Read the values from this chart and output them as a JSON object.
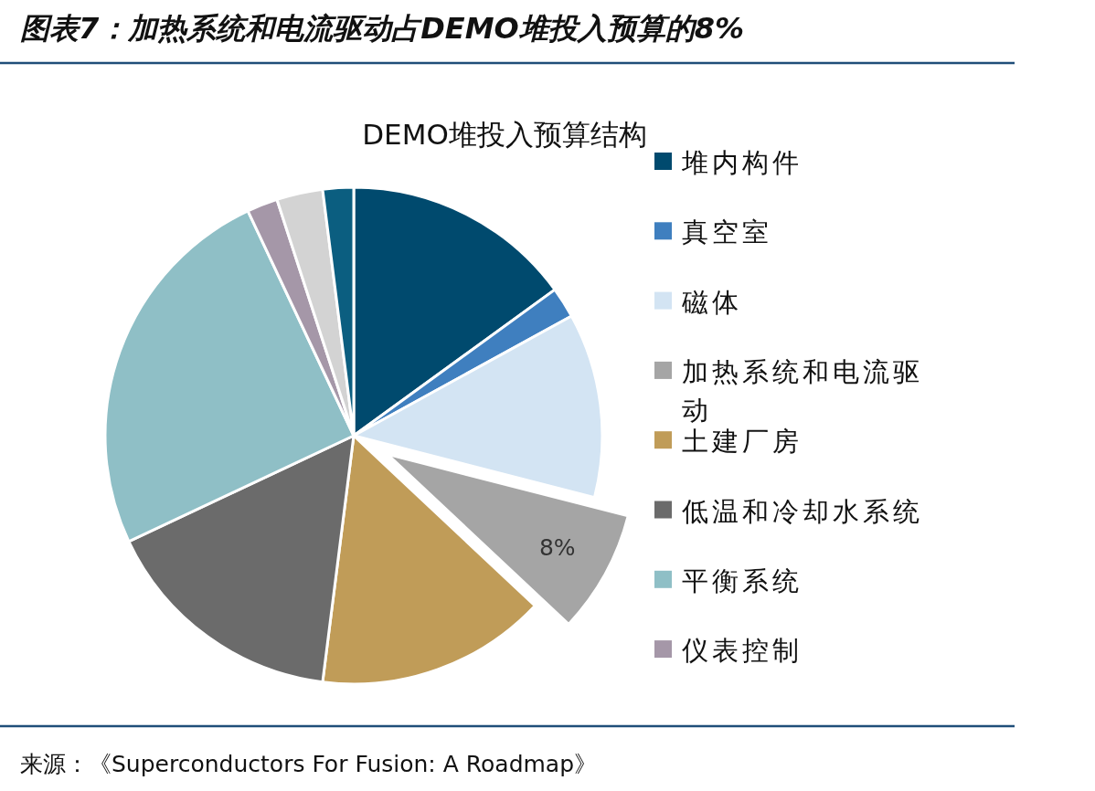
{
  "chart_data": {
    "type": "pie",
    "title": "图表7：加热系统和电流驱动占DEMO堆投入预算的8%",
    "subtitle": "DEMO堆投入预算结构",
    "categories": [
      "堆内构件",
      "真空室",
      "磁体",
      "加热系统和电流驱动",
      "土建厂房",
      "低温和冷却水系统",
      "平衡系统",
      "仪表控制",
      null,
      null
    ],
    "values": [
      15,
      2,
      12,
      8,
      15,
      16,
      25,
      2,
      3,
      2
    ],
    "colors": [
      "#004a6e",
      "#3f7fbf",
      "#d3e4f3",
      "#a5a5a5",
      "#c09c58",
      "#6b6b6b",
      "#8fbfc6",
      "#a597a8",
      "#d3d3d3",
      "#0b5e80"
    ],
    "value_labels": [
      null,
      null,
      null,
      "8%",
      null,
      null,
      null,
      null,
      null,
      null
    ],
    "legend": "right",
    "annotations": [
      "来源：《Superconductors For Fusion: A Roadmap》"
    ]
  }
}
